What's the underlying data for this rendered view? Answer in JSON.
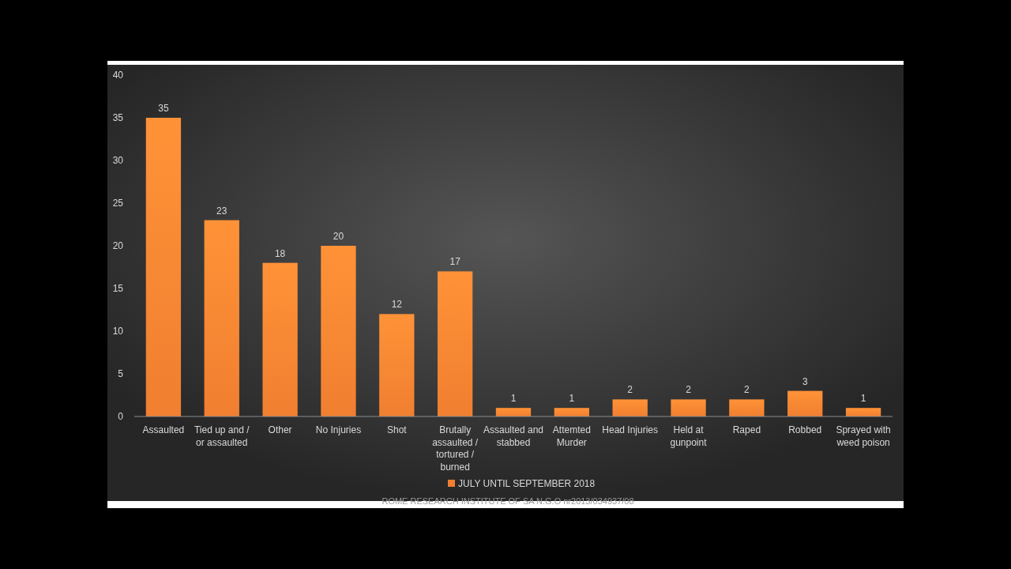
{
  "chart_data": {
    "type": "bar",
    "categories": [
      "Assaulted",
      "Tied up and / or assaulted",
      "Other",
      "No Injuries",
      "Shot",
      "Brutally assaulted / tortured / burned",
      "Assaulted and stabbed",
      "Attemted Murder",
      "Head Injuries",
      "Held at gunpoint",
      "Raped",
      "Robbed",
      "Sprayed with weed poison"
    ],
    "series": [
      {
        "name": "JULY UNTIL SEPTEMBER 2018",
        "color": "#f07f30",
        "values": [
          35,
          23,
          18,
          20,
          12,
          17,
          1,
          1,
          2,
          2,
          2,
          3,
          1
        ]
      }
    ],
    "ylim": [
      0,
      40
    ],
    "yticks": [
      0,
      5,
      10,
      15,
      20,
      25,
      30,
      35,
      40
    ],
    "grid": false,
    "legend": "bottom",
    "data_labels": true,
    "annotations": [
      "ROME RESEARCH INSTITUTE OF SA N.G.O nr2013/034937/08"
    ]
  }
}
